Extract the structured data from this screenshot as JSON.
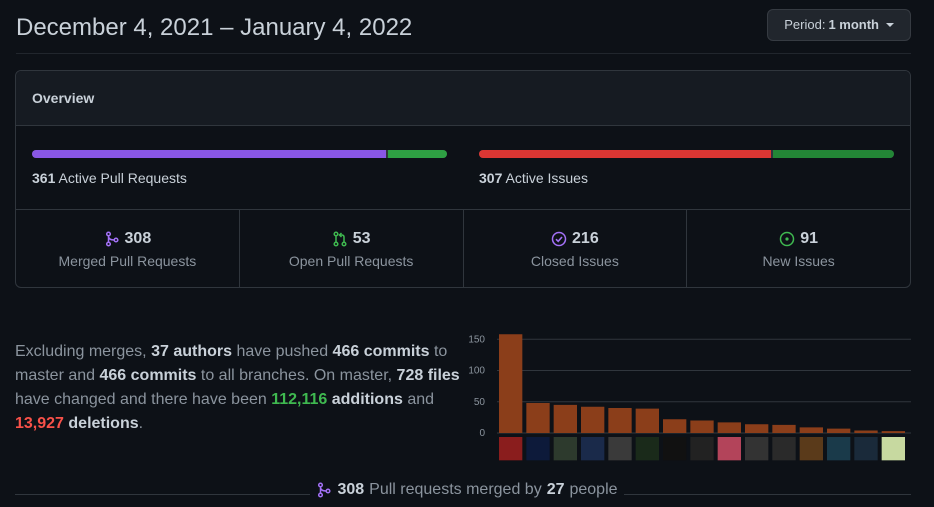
{
  "header": {
    "title": "December 4, 2021 – January 4, 2022",
    "period_prefix": "Period:",
    "period_value": "1 month"
  },
  "overview": {
    "title": "Overview",
    "pull_requests": {
      "count": "361",
      "label": "Active Pull Requests",
      "merged_fraction": 0.853,
      "open_fraction": 0.147
    },
    "issues": {
      "count": "307",
      "label": "Active Issues",
      "closed_fraction": 0.704,
      "new_fraction": 0.296
    },
    "stats": [
      {
        "value": "308",
        "label": "Merged Pull Requests",
        "icon": "merge-icon"
      },
      {
        "value": "53",
        "label": "Open Pull Requests",
        "icon": "pull-request-icon"
      },
      {
        "value": "216",
        "label": "Closed Issues",
        "icon": "issue-closed-icon"
      },
      {
        "value": "91",
        "label": "New Issues",
        "icon": "issue-opened-icon"
      }
    ]
  },
  "summary": {
    "t1": "Excluding merges,",
    "authors": "37 authors",
    "t2": "have pushed",
    "commits_master": "466 commits",
    "t3": "to master and",
    "commits_all": "466 commits",
    "t4": "to all branches. On master,",
    "files": "728 files",
    "t5": "have changed and there have been",
    "additions_num": "112,116",
    "additions_word": "additions",
    "t6": "and",
    "deletions_num": "13,927",
    "deletions_word": "deletions",
    "t7": "."
  },
  "chart_data": {
    "type": "bar",
    "values": [
      158,
      48,
      45,
      42,
      40,
      39,
      22,
      20,
      17,
      14,
      13,
      9,
      7,
      4,
      3
    ],
    "ylim": [
      0,
      160
    ],
    "yticks": [
      "150",
      "100",
      "50",
      "0"
    ],
    "bar_color": "#8b3e1a",
    "xlabel": "",
    "ylabel": ""
  },
  "footer": {
    "count": "308",
    "text": "Pull requests merged by",
    "people_count": "27",
    "people_word": "people"
  },
  "colors": {
    "merged": "#8957e5",
    "open": "#2ea043",
    "closed_issue": "#da3633",
    "new_issue": "#238636"
  }
}
